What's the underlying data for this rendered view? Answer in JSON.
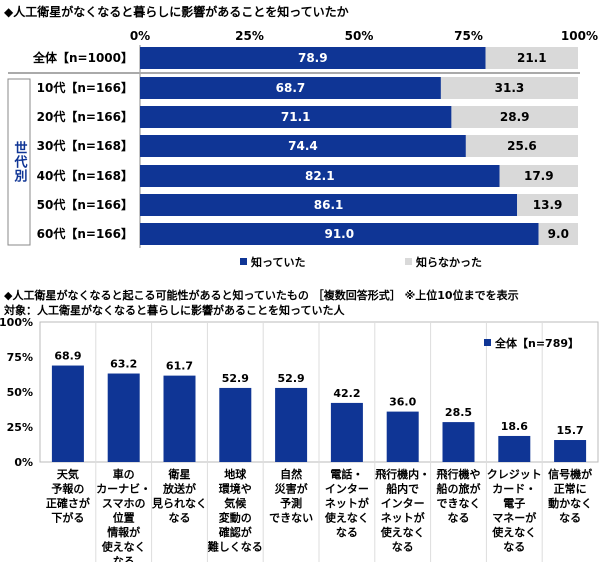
{
  "chart_data": [
    {
      "type": "bar",
      "orientation": "horizontal",
      "stacked": true,
      "title": "◆人工衛星がなくなると暮らしに影響があることを知っていたか",
      "xlim": [
        0,
        100
      ],
      "ticks": [
        "0%",
        "25%",
        "50%",
        "75%",
        "100%"
      ],
      "group_label": "世代別",
      "categories": [
        "全体【n=1000】",
        "10代【n=166】",
        "20代【n=166】",
        "30代【n=168】",
        "40代【n=168】",
        "50代【n=166】",
        "60代【n=166】"
      ],
      "series": [
        {
          "name": "知っていた",
          "color": "#0f3595",
          "values": [
            78.9,
            68.7,
            71.1,
            74.4,
            82.1,
            86.1,
            91.0
          ]
        },
        {
          "name": "知らなかった",
          "color": "#d9d9d9",
          "values": [
            21.1,
            31.3,
            28.9,
            25.6,
            17.9,
            13.9,
            9.0
          ]
        }
      ],
      "legend": "bottom"
    },
    {
      "type": "bar",
      "title": "◆人工衛星がなくなると起こる可能性があると知っていたもの ［複数回答形式］ ※上位10位までを表示",
      "subtitle": "対象：人工衛星がなくなると暮らしに影響があることを知っていた人",
      "ylim": [
        0,
        100
      ],
      "ticks": [
        "100%",
        "75%",
        "50%",
        "25%",
        "0%"
      ],
      "series_name": "全体【n=789】",
      "color": "#0f3595",
      "legend": "top-right",
      "categories": [
        "天気\n予報の\n正確さが\n下がる",
        "車の\nカーナビ・\nスマホの\n位置\n情報が\n使えなく\nなる",
        "衛星\n放送が\n見られなく\nなる",
        "地球\n環境や\n気候\n変動の\n確認が\n難しくなる",
        "自然\n災害が\n予測\nできない",
        "電話・\nインター\nネットが\n使えなく\nなる",
        "飛行機内・\n船内で\nインター\nネットが\n使えなく\nなる",
        "飛行機や\n船の旅が\nできなく\nなる",
        "クレジット\nカード・\n電子\nマネーが\n使えなく\nなる",
        "信号機が\n正常に\n動かなく\nなる"
      ],
      "values": [
        68.9,
        63.2,
        61.7,
        52.9,
        52.9,
        42.2,
        36.0,
        28.5,
        18.6,
        15.7
      ]
    }
  ]
}
